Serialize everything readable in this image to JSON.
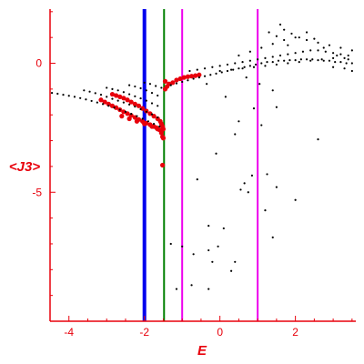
{
  "chart_data": {
    "type": "scatter",
    "title": "",
    "xlabel": "E",
    "ylabel": "<J3>",
    "xlim": [
      -4.5,
      3.6
    ],
    "ylim": [
      -10.0,
      2.1
    ],
    "xticks": [
      -4,
      -2,
      0,
      2
    ],
    "xtick_labels": [
      "-4",
      "-2",
      "0",
      "2"
    ],
    "yticks": [
      0,
      -5
    ],
    "ytick_labels": [
      "0",
      "-5"
    ],
    "grid": false,
    "legend": "none",
    "colors": {
      "axes": "#e8000b",
      "black_points": "#000000",
      "red_points": "#e8000b",
      "line_blue": "#0000ee",
      "line_green": "#008000",
      "line_magenta": "#ee00ee"
    },
    "vertical_lines": [
      {
        "x": -2.0,
        "color": "blue"
      },
      {
        "x": -1.48,
        "color": "green"
      },
      {
        "x": -1.0,
        "color": "magenta"
      },
      {
        "x": 1.0,
        "color": "magenta"
      }
    ],
    "series": [
      {
        "color": "red",
        "points": [
          [
            -2.85,
            -1.2
          ],
          [
            -2.75,
            -1.25
          ],
          [
            -2.65,
            -1.3
          ],
          [
            -2.55,
            -1.35
          ],
          [
            -2.45,
            -1.42
          ],
          [
            -2.35,
            -1.5
          ],
          [
            -2.25,
            -1.58
          ],
          [
            -2.15,
            -1.65
          ],
          [
            -2.05,
            -1.75
          ],
          [
            -1.95,
            -1.85
          ],
          [
            -1.85,
            -1.95
          ],
          [
            -1.75,
            -2.05
          ],
          [
            -1.65,
            -2.15
          ],
          [
            -1.58,
            -2.25
          ],
          [
            -1.55,
            -2.35
          ],
          [
            -1.52,
            -2.45
          ],
          [
            -1.5,
            -2.55
          ],
          [
            -1.55,
            -2.62
          ],
          [
            -1.6,
            -2.58
          ],
          [
            -1.68,
            -2.5
          ],
          [
            -1.75,
            -2.45
          ],
          [
            -1.85,
            -2.38
          ],
          [
            -1.95,
            -2.32
          ],
          [
            -2.05,
            -2.25
          ],
          [
            -2.15,
            -2.18
          ],
          [
            -2.25,
            -2.1
          ],
          [
            -2.35,
            -2.02
          ],
          [
            -2.45,
            -1.95
          ],
          [
            -2.55,
            -1.88
          ],
          [
            -2.65,
            -1.8
          ],
          [
            -2.75,
            -1.72
          ],
          [
            -2.85,
            -1.65
          ],
          [
            -2.95,
            -1.58
          ],
          [
            -3.05,
            -1.5
          ],
          [
            -3.15,
            -1.42
          ],
          [
            -2.6,
            -2.05
          ],
          [
            -2.4,
            -2.15
          ],
          [
            -2.2,
            -2.25
          ],
          [
            -2.0,
            -2.35
          ],
          [
            -1.8,
            -2.45
          ],
          [
            -1.65,
            -2.55
          ],
          [
            -1.55,
            -2.7
          ],
          [
            -1.52,
            -2.85
          ],
          [
            -1.5,
            -2.9
          ],
          [
            -1.45,
            -0.7
          ],
          [
            -1.35,
            -0.8
          ],
          [
            -1.25,
            -0.75
          ],
          [
            -1.15,
            -0.65
          ],
          [
            -1.05,
            -0.6
          ],
          [
            -0.95,
            -0.55
          ],
          [
            -0.85,
            -0.52
          ],
          [
            -0.75,
            -0.5
          ],
          [
            -0.65,
            -0.48
          ],
          [
            -0.55,
            -0.45
          ],
          [
            -1.45,
            -1.0
          ],
          [
            -1.4,
            -0.9
          ],
          [
            -1.52,
            -3.95
          ]
        ]
      },
      {
        "color": "black",
        "points": [
          [
            -4.45,
            -1.15
          ],
          [
            -4.3,
            -1.18
          ],
          [
            -4.15,
            -1.22
          ],
          [
            -4.0,
            -1.26
          ],
          [
            -3.85,
            -1.3
          ],
          [
            -3.7,
            -1.35
          ],
          [
            -3.55,
            -1.4
          ],
          [
            -3.4,
            -1.46
          ],
          [
            -3.25,
            -1.52
          ],
          [
            -3.1,
            -1.58
          ],
          [
            -2.95,
            -1.65
          ],
          [
            -2.8,
            -1.72
          ],
          [
            -2.65,
            -1.8
          ],
          [
            -2.5,
            -1.88
          ],
          [
            -2.35,
            -1.96
          ],
          [
            -2.2,
            -2.05
          ],
          [
            -2.05,
            -2.15
          ],
          [
            -1.9,
            -2.25
          ],
          [
            -1.75,
            -2.35
          ],
          [
            -1.6,
            -2.45
          ],
          [
            -3.6,
            -1.05
          ],
          [
            -3.45,
            -1.1
          ],
          [
            -3.3,
            -1.16
          ],
          [
            -3.15,
            -1.22
          ],
          [
            -3.0,
            -1.3
          ],
          [
            -2.85,
            -1.38
          ],
          [
            -2.7,
            -1.45
          ],
          [
            -2.55,
            -1.52
          ],
          [
            -2.4,
            -1.6
          ],
          [
            -2.25,
            -1.68
          ],
          [
            -2.1,
            -1.78
          ],
          [
            -1.95,
            -1.88
          ],
          [
            -1.8,
            -1.98
          ],
          [
            -1.65,
            -2.1
          ],
          [
            -3.0,
            -0.95
          ],
          [
            -2.85,
            -1.0
          ],
          [
            -2.7,
            -1.05
          ],
          [
            -2.55,
            -1.12
          ],
          [
            -2.4,
            -1.2
          ],
          [
            -2.25,
            -1.28
          ],
          [
            -2.1,
            -1.36
          ],
          [
            -1.95,
            -1.45
          ],
          [
            -1.8,
            -1.55
          ],
          [
            -1.65,
            -1.65
          ],
          [
            -2.4,
            -0.85
          ],
          [
            -2.25,
            -0.9
          ],
          [
            -2.1,
            -0.97
          ],
          [
            -1.95,
            -1.05
          ],
          [
            -1.8,
            -1.15
          ],
          [
            -1.65,
            -1.25
          ],
          [
            -2.0,
            -0.75
          ],
          [
            -1.85,
            -0.8
          ],
          [
            -1.7,
            -0.88
          ],
          [
            -1.55,
            -0.95
          ],
          [
            -1.3,
            -0.85
          ],
          [
            -1.15,
            -0.78
          ],
          [
            -1.0,
            -0.72
          ],
          [
            -0.85,
            -0.66
          ],
          [
            -0.7,
            -0.6
          ],
          [
            -0.55,
            -0.55
          ],
          [
            -0.4,
            -0.5
          ],
          [
            -0.25,
            -0.45
          ],
          [
            -0.1,
            -0.4
          ],
          [
            0.05,
            -0.35
          ],
          [
            0.2,
            -0.3
          ],
          [
            0.35,
            -0.25
          ],
          [
            0.5,
            -0.2
          ],
          [
            0.65,
            -0.15
          ],
          [
            0.8,
            -0.1
          ],
          [
            0.95,
            -0.05
          ],
          [
            1.1,
            0.0
          ],
          [
            1.25,
            0.05
          ],
          [
            1.4,
            0.05
          ],
          [
            1.55,
            0.1
          ],
          [
            1.7,
            0.1
          ],
          [
            1.85,
            0.12
          ],
          [
            2.0,
            0.12
          ],
          [
            2.15,
            0.15
          ],
          [
            2.3,
            0.15
          ],
          [
            2.45,
            0.15
          ],
          [
            2.6,
            0.12
          ],
          [
            2.75,
            0.1
          ],
          [
            2.9,
            0.1
          ],
          [
            3.05,
            0.05
          ],
          [
            3.2,
            0.05
          ],
          [
            3.35,
            0.0
          ],
          [
            3.5,
            0.0
          ],
          [
            -0.8,
            -0.3
          ],
          [
            -0.6,
            -0.25
          ],
          [
            -0.4,
            -0.2
          ],
          [
            -0.2,
            -0.15
          ],
          [
            0.0,
            -0.1
          ],
          [
            0.2,
            -0.05
          ],
          [
            0.4,
            0.0
          ],
          [
            0.6,
            0.05
          ],
          [
            0.8,
            0.1
          ],
          [
            1.0,
            0.15
          ],
          [
            1.2,
            0.2
          ],
          [
            1.4,
            0.25
          ],
          [
            1.6,
            0.3
          ],
          [
            1.8,
            0.35
          ],
          [
            2.0,
            0.4
          ],
          [
            2.2,
            0.45
          ],
          [
            2.4,
            0.5
          ],
          [
            2.6,
            0.5
          ],
          [
            2.8,
            0.45
          ],
          [
            3.0,
            0.4
          ],
          [
            3.2,
            0.35
          ],
          [
            3.4,
            0.3
          ],
          [
            0.0,
            -0.3
          ],
          [
            0.3,
            -0.25
          ],
          [
            0.6,
            -0.2
          ],
          [
            0.9,
            -0.15
          ],
          [
            1.2,
            -0.1
          ],
          [
            1.5,
            -0.05
          ],
          [
            1.8,
            0.0
          ],
          [
            2.1,
            0.05
          ],
          [
            2.4,
            0.1
          ],
          [
            2.7,
            0.15
          ],
          [
            3.0,
            0.2
          ],
          [
            3.3,
            0.2
          ],
          [
            0.5,
            0.3
          ],
          [
            0.8,
            0.45
          ],
          [
            1.1,
            0.6
          ],
          [
            1.4,
            0.75
          ],
          [
            1.7,
            0.9
          ],
          [
            2.0,
            1.0
          ],
          [
            2.3,
            0.9
          ],
          [
            2.6,
            0.8
          ],
          [
            2.9,
            0.7
          ],
          [
            3.2,
            0.6
          ],
          [
            3.5,
            0.5
          ],
          [
            1.3,
            1.2
          ],
          [
            1.5,
            1.05
          ],
          [
            1.7,
            1.3
          ],
          [
            1.9,
            1.15
          ],
          [
            2.1,
            1.0
          ],
          [
            2.3,
            1.2
          ],
          [
            1.6,
            1.5
          ],
          [
            1.8,
            0.7
          ],
          [
            2.5,
            0.95
          ],
          [
            2.75,
            0.6
          ],
          [
            3.1,
            0.3
          ],
          [
            3.4,
            0.15
          ],
          [
            3.5,
            -0.3
          ],
          [
            3.3,
            -0.2
          ],
          [
            3.0,
            -0.15
          ],
          [
            0.7,
            -0.55
          ],
          [
            1.05,
            -0.8
          ],
          [
            1.4,
            -1.05
          ],
          [
            -0.35,
            -0.8
          ],
          [
            0.15,
            -1.3
          ],
          [
            0.9,
            -1.75
          ],
          [
            1.5,
            -1.7
          ],
          [
            0.5,
            -2.25
          ],
          [
            1.1,
            -2.4
          ],
          [
            2.6,
            -2.95
          ],
          [
            0.4,
            -2.75
          ],
          [
            -0.1,
            -3.5
          ],
          [
            0.85,
            -4.35
          ],
          [
            0.65,
            -4.65
          ],
          [
            1.25,
            -4.3
          ],
          [
            0.55,
            -4.9
          ],
          [
            0.75,
            -5.0
          ],
          [
            1.5,
            -4.8
          ],
          [
            2.0,
            -5.3
          ],
          [
            -0.6,
            -4.5
          ],
          [
            1.2,
            -5.7
          ],
          [
            -0.3,
            -6.3
          ],
          [
            0.1,
            -6.4
          ],
          [
            -0.05,
            -7.1
          ],
          [
            -0.3,
            -7.25
          ],
          [
            0.4,
            -7.7
          ],
          [
            -1.0,
            -7.1
          ],
          [
            -1.3,
            -7.0
          ],
          [
            -0.7,
            -7.4
          ],
          [
            -0.2,
            -7.7
          ],
          [
            0.3,
            -8.05
          ],
          [
            1.4,
            -6.75
          ],
          [
            -1.15,
            -8.75
          ],
          [
            -0.75,
            -8.6
          ],
          [
            -0.3,
            -8.75
          ]
        ]
      }
    ]
  }
}
